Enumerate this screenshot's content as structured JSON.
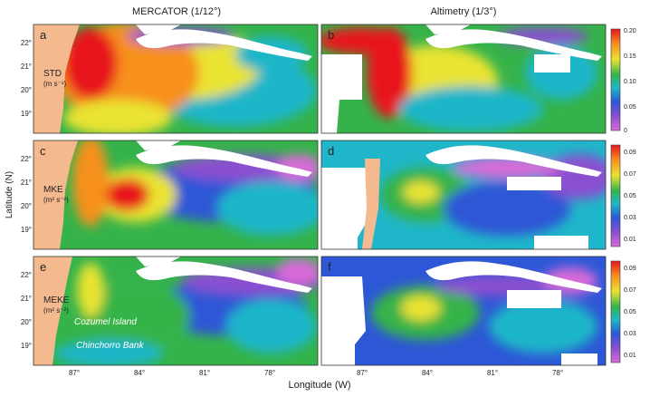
{
  "columns": [
    "MERCATOR (1/12°)",
    "Altimetry (1/3°)"
  ],
  "xlabel": "Longitude (W)",
  "ylabel": "Latitude (N)",
  "lat_ticks": [
    "22°",
    "21°",
    "20°",
    "19°"
  ],
  "lon_ticks": [
    "87°",
    "84°",
    "81°",
    "78°"
  ],
  "panels": [
    {
      "letter": "a"
    },
    {
      "letter": "b"
    },
    {
      "letter": "c"
    },
    {
      "letter": "d"
    },
    {
      "letter": "e"
    },
    {
      "letter": "f"
    }
  ],
  "rows": [
    {
      "var": "STD",
      "unit": "(m s⁻¹)"
    },
    {
      "var": "MKE",
      "unit": "(m² s⁻²)"
    },
    {
      "var": "MEKE",
      "unit": "(m² s⁻²)"
    }
  ],
  "colorbars": [
    {
      "ticks": [
        "0.20",
        "0.15",
        "0.10",
        "0.05",
        "0"
      ],
      "values": [
        0.2,
        0.15,
        0.1,
        0.05,
        0
      ]
    },
    {
      "ticks": [
        "0.09",
        "0.07",
        "0.05",
        "0.03",
        "0.01"
      ],
      "values": [
        0.09,
        0.07,
        0.05,
        0.03,
        0.01
      ]
    },
    {
      "ticks": [
        "0.09",
        "0.07",
        "0.05",
        "0.03",
        "0.01"
      ],
      "values": [
        0.09,
        0.07,
        0.05,
        0.03,
        0.01
      ]
    }
  ],
  "annotations": {
    "cozumel": "Cozumel Island",
    "chinchorro": "Chinchorro Bank"
  },
  "colors": {
    "land": "#f5b98f",
    "white_land": "#ffffff",
    "red": "#e8151a",
    "orange": "#f7901e",
    "yellow": "#e9e330",
    "green": "#35b34a",
    "cyan": "#1fb6c9",
    "blue": "#2d57d6",
    "purple": "#8a4fd0",
    "magenta": "#d86ad8"
  }
}
